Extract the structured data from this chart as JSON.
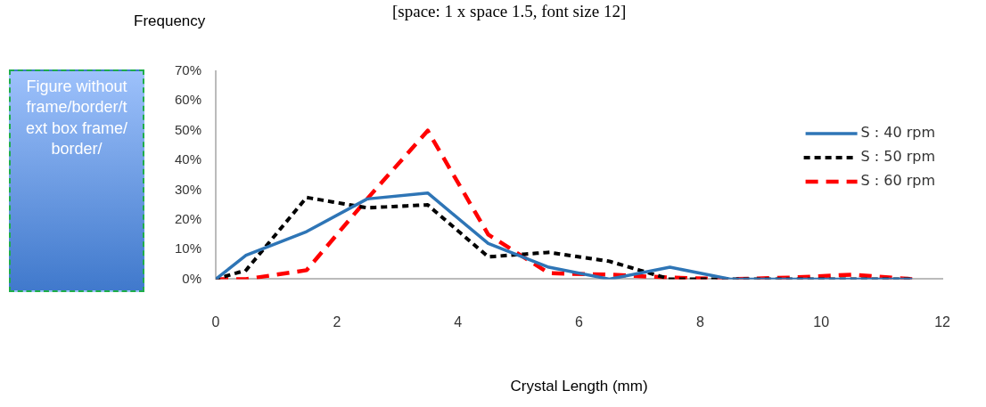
{
  "chart_data": {
    "type": "line",
    "ylabel": "Frequency",
    "xlabel": "Crystal Length (mm)",
    "annotations": [
      "[space: 1 x space 1.5, font size 12]",
      "Figure without frame/border/text box frame/border/"
    ],
    "x": [
      0,
      0.5,
      1.5,
      2.5,
      3.5,
      4.5,
      5.5,
      6.5,
      7.5,
      8.5,
      9.5,
      10.5,
      11.5
    ],
    "series": [
      {
        "name": "S : 40 rpm",
        "color": "#2e75b6",
        "line_style": "solid",
        "values": [
          0,
          8,
          16,
          27,
          29,
          12,
          4,
          0,
          4,
          0,
          0,
          0,
          0
        ]
      },
      {
        "name": "S : 50 rpm",
        "color": "#000000",
        "line_style": "dotted",
        "values": [
          0,
          3,
          27.5,
          24,
          25,
          7.5,
          9,
          6,
          0,
          0,
          0,
          0,
          0
        ]
      },
      {
        "name": "S : 60 rpm",
        "color": "#ff0000",
        "line_style": "dashed",
        "values": [
          0,
          0,
          3,
          27,
          50,
          15,
          2,
          1.5,
          0.5,
          0,
          0.5,
          1.5,
          0
        ]
      }
    ],
    "xlim": [
      0,
      12
    ],
    "xticks": [
      0,
      2,
      4,
      6,
      8,
      10,
      12
    ],
    "ylim": [
      0,
      70
    ],
    "yticks": [
      {
        "value": 0,
        "label": "0%"
      },
      {
        "value": 10,
        "label": "10%"
      },
      {
        "value": 20,
        "label": "20%"
      },
      {
        "value": 30,
        "label": "30%"
      },
      {
        "value": 40,
        "label": "40%"
      },
      {
        "value": 50,
        "label": "50%"
      },
      {
        "value": 60,
        "label": "60%"
      },
      {
        "value": 70,
        "label": "70%"
      }
    ],
    "grid": false,
    "legend": "top right",
    "marker": "none"
  }
}
